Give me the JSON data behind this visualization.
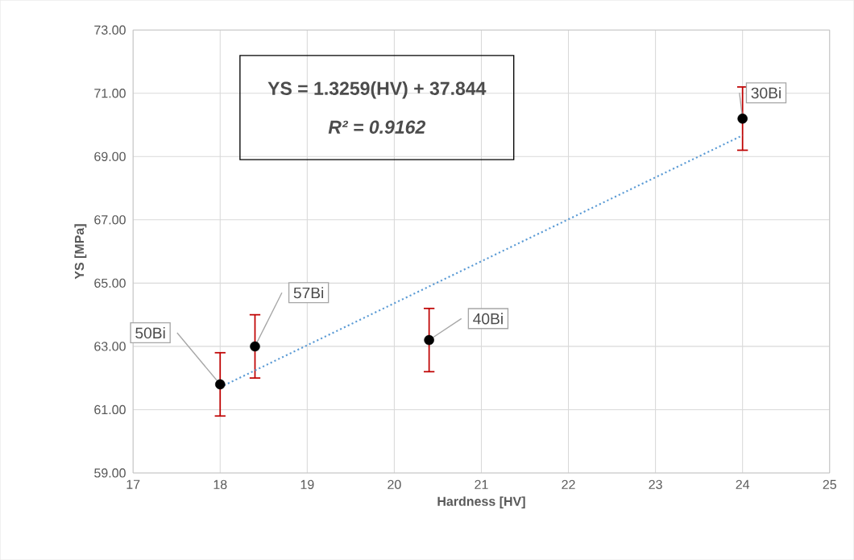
{
  "chart_data": {
    "type": "scatter",
    "xlabel": "Hardness [HV]",
    "ylabel": "YS [MPa]",
    "xlim": [
      17,
      25
    ],
    "xticks": [
      17,
      18,
      19,
      20,
      21,
      22,
      23,
      24,
      25
    ],
    "ylim": [
      59,
      73
    ],
    "yticks": [
      {
        "value": 59,
        "label": "59.00"
      },
      {
        "value": 61,
        "label": "61.00"
      },
      {
        "value": 63,
        "label": "63.00"
      },
      {
        "value": 65,
        "label": "65.00"
      },
      {
        "value": 67,
        "label": "67.00"
      },
      {
        "value": 69,
        "label": "69.00"
      },
      {
        "value": 71,
        "label": "71.00"
      },
      {
        "value": 73,
        "label": "73.00"
      }
    ],
    "grid": true,
    "series": [
      {
        "color": "#000000",
        "marker": "circle",
        "x": [
          18.0,
          18.4,
          20.4,
          24.0
        ],
        "values": [
          61.8,
          63.0,
          63.2,
          70.2
        ],
        "errors": [
          1.0,
          1.0,
          1.0,
          1.0
        ]
      },
      {
        "type": "line",
        "color": "#5b9bd5",
        "line_style": "dotted",
        "marker": "none",
        "x": [
          18.0,
          24.0
        ],
        "values": [
          61.71,
          69.67
        ]
      }
    ],
    "annotations": [
      "YS = 1.3259(HV) + 37.844",
      "R² = 0.9162",
      {
        "text": "50Bi",
        "x": 18.0,
        "y": 61.8
      },
      {
        "text": "57Bi",
        "x": 18.4,
        "y": 63.0
      },
      {
        "text": "40Bi",
        "x": 20.4,
        "y": 63.2
      },
      {
        "text": "30Bi",
        "x": 24.0,
        "y": 70.2
      }
    ]
  }
}
